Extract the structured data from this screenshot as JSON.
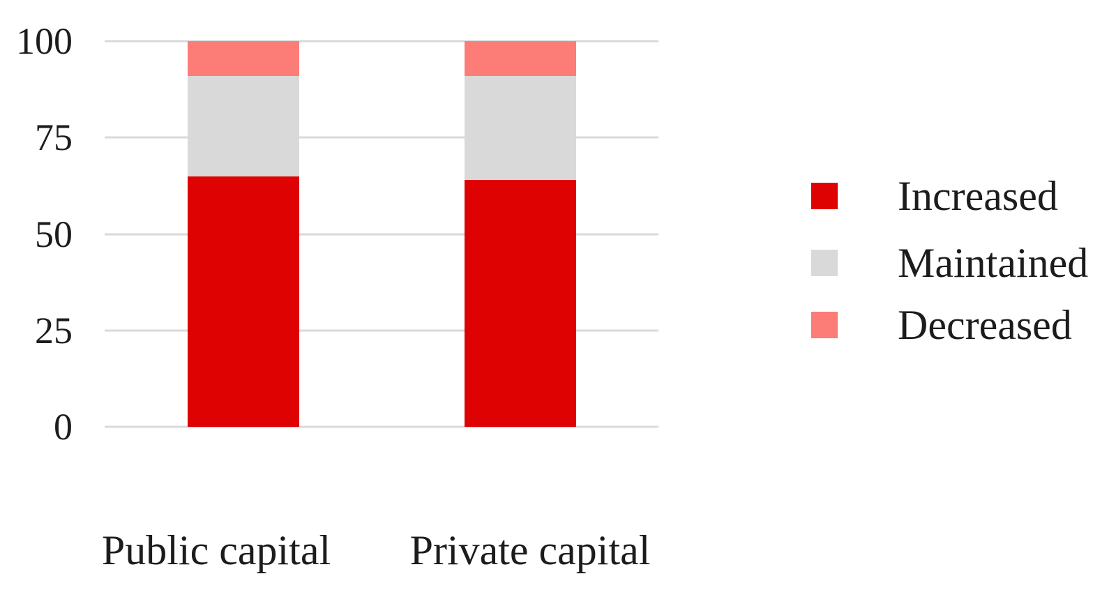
{
  "chart_data": {
    "type": "bar",
    "stacked": true,
    "orientation": "vertical",
    "title": "",
    "xlabel": "",
    "ylabel": "",
    "categories": [
      "Public capital",
      "Private capital"
    ],
    "series": [
      {
        "name": "Increased",
        "color": "#de0202",
        "values": [
          65,
          64
        ]
      },
      {
        "name": "Maintained",
        "color": "#d9d9d9",
        "values": [
          26,
          27
        ]
      },
      {
        "name": "Decreased",
        "color": "#fc7c78",
        "values": [
          9,
          9
        ]
      }
    ],
    "ylim": [
      0,
      100
    ],
    "yticks": [
      0,
      25,
      50,
      75,
      100
    ],
    "grid": true,
    "gridline_color": "#dadada",
    "legend_position": "right",
    "legend_items": [
      "Increased",
      "Maintained",
      "Decreased"
    ],
    "text_color": "#1c1c1c",
    "background_color": "#ffffff"
  }
}
